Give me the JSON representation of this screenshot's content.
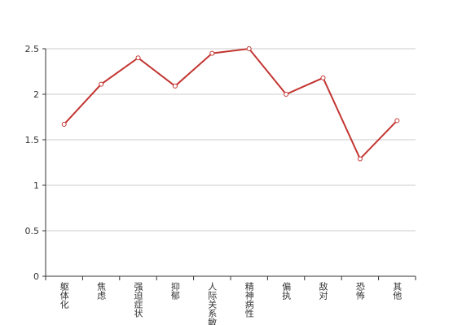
{
  "chart_data": {
    "type": "line",
    "categories": [
      "躯体化",
      "焦虑",
      "强迫症状",
      "抑郁",
      "人际关系敏感",
      "精神病性",
      "偏执",
      "敌对",
      "恐怖",
      "其他"
    ],
    "series": [
      {
        "color": "#c23531",
        "values": [
          1.67,
          2.11,
          2.4,
          2.09,
          2.45,
          2.5,
          2.0,
          2.18,
          1.29,
          1.71
        ]
      }
    ],
    "ylim": [
      0,
      2.5
    ],
    "yticks": [
      0,
      0.5,
      1,
      1.5,
      2,
      2.5
    ],
    "grid": true
  }
}
